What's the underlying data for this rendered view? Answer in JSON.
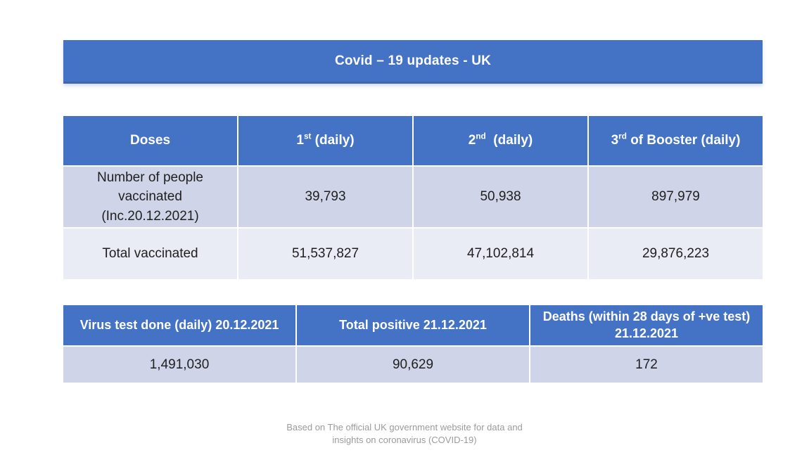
{
  "title": "Covid – 19 updates - UK",
  "colors": {
    "accent_blue": "#4472c4",
    "band_lavender": "#cfd4e8",
    "band_light": "#e9ebf5",
    "header_text": "#ffffff",
    "body_text": "#1f1f1f",
    "footer_text": "#9b9b9b"
  },
  "vaccination_table": {
    "headers": [
      {
        "base": "Doses",
        "sup": "",
        "rest": ""
      },
      {
        "base": "1",
        "sup": "st",
        "rest": " (daily)"
      },
      {
        "base": "2",
        "sup": "nd",
        "rest": "  (daily)"
      },
      {
        "base": "3",
        "sup": "rd",
        "rest": " of Booster (daily)"
      }
    ],
    "rows": [
      {
        "label": "Number of people vaccinated (Inc.20.12.2021)",
        "values": [
          "39,793",
          "50,938",
          "897,979"
        ]
      },
      {
        "label": "Total vaccinated",
        "values": [
          "51,537,827",
          "47,102,814",
          "29,876,223"
        ]
      }
    ]
  },
  "stats_table": {
    "headers": [
      "Virus test done (daily) 20.12.2021",
      "Total positive 21.12.2021",
      "Deaths (within 28 days of +ve test) 21.12.2021"
    ],
    "values": [
      "1,491,030",
      "90,629",
      "172"
    ]
  },
  "footer": {
    "line1": "Based on The official UK government website for data and",
    "line2": "insights on coronavirus (COVID-19)"
  }
}
